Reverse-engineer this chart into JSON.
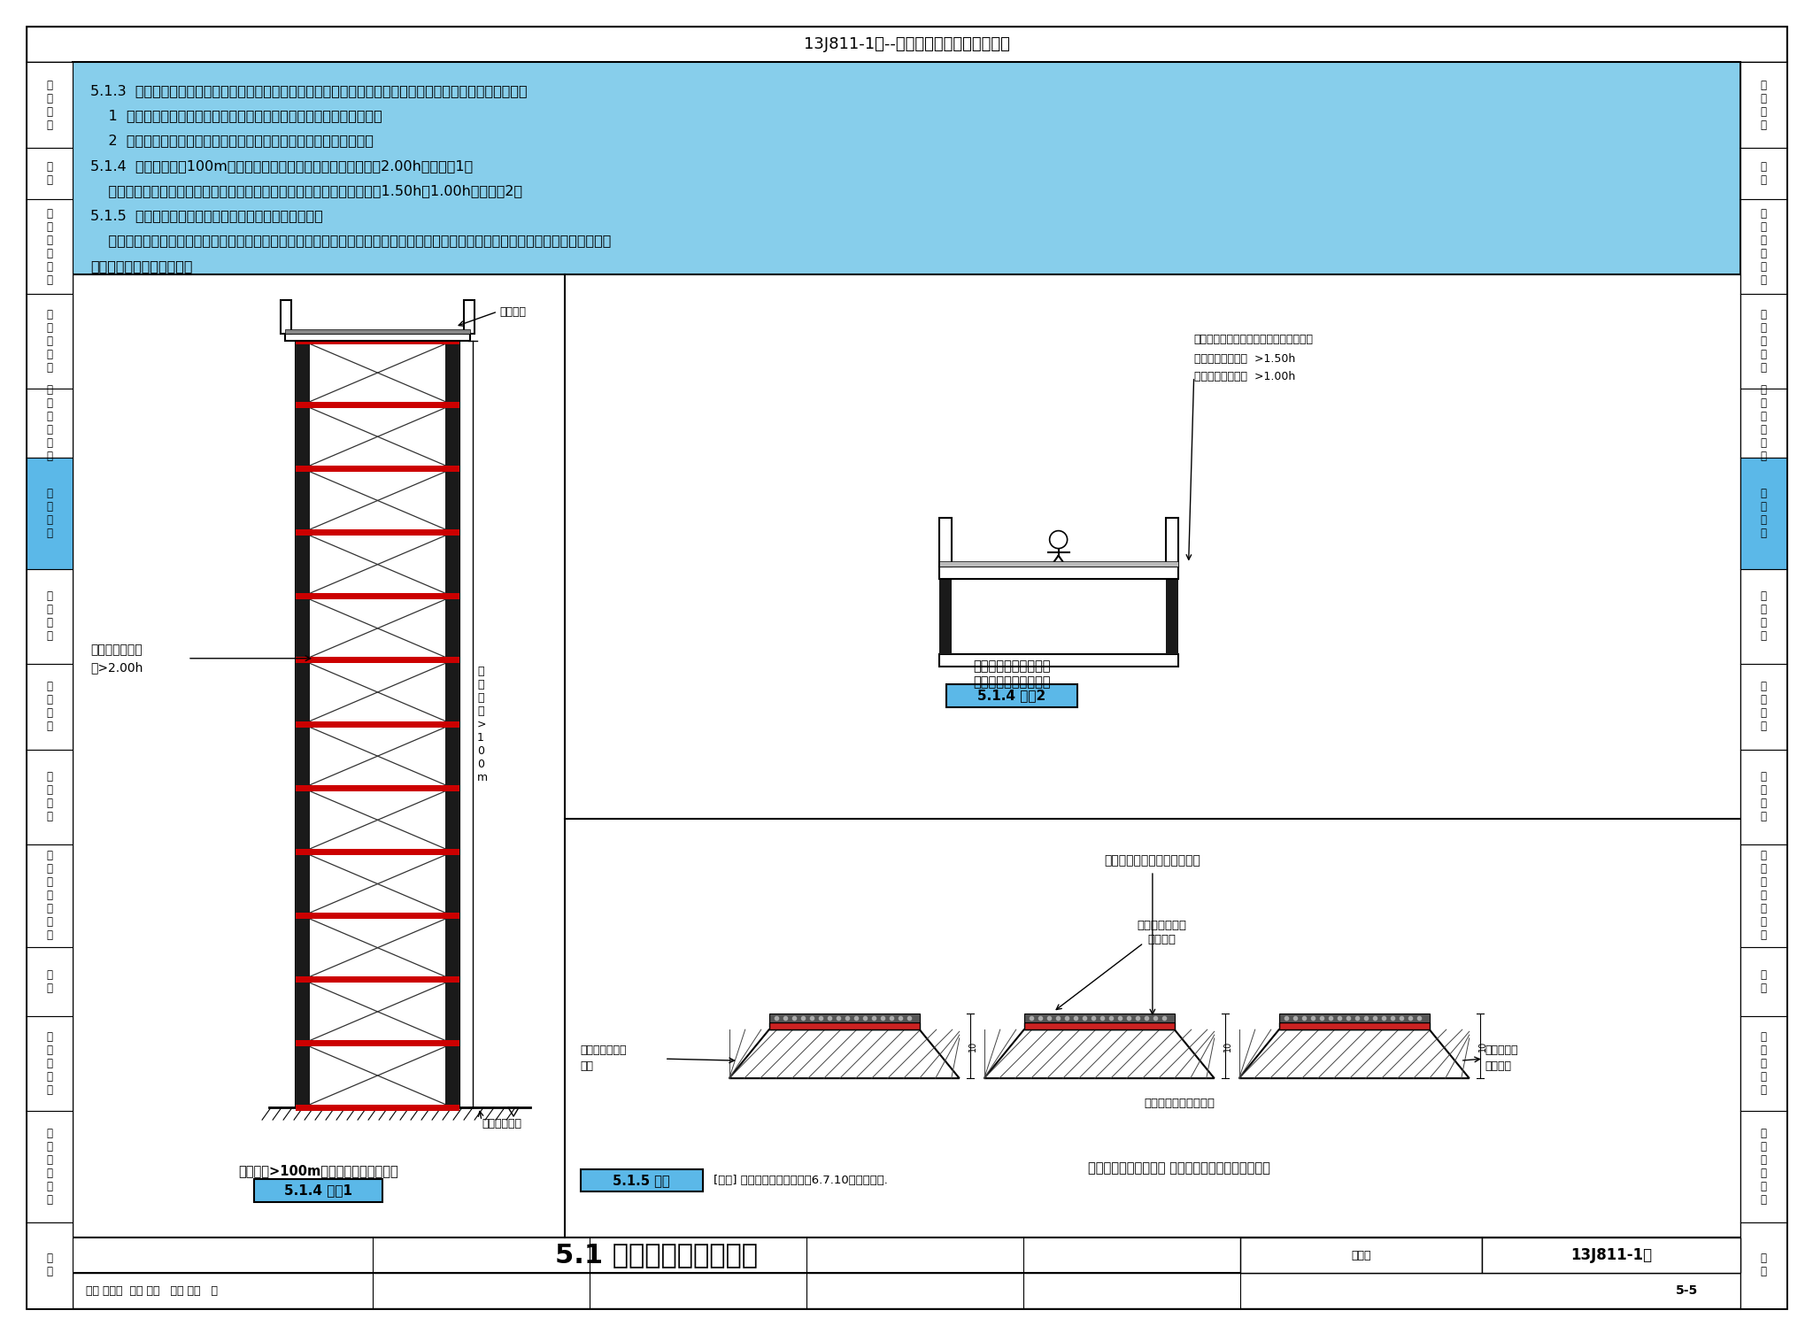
{
  "title": "5.1 建筑分类和耐火等级",
  "figure_number": "13J811-1改",
  "page": "5-5",
  "header_text_lines": [
    "5.1.3  民用建筑的耐火等级应根据其建筑高度、使用功能、重要性和火灾扑救难度等确定，并应符合下列规定：",
    "    1  地下或半地下建筑（室）和一类高层建筑的耐火等级不应低于一级；",
    "    2  单、多层重要公共建筑和二类高层建筑的耐火等级不应低于二级。",
    "5.1.4  建筑高度大于100m的民用建筑，其楼板的耐火极限不应低于2.00h。【图示1】",
    "    一、二级耐火等级建筑的上人平屋顶，其屋面板的耐火极限分别不应低于1.50h和1.00h。【图示2】",
    "5.1.5  一、二级耐火等级建筑的屋面板应采用不燃材料。",
    "    屋面防水层宜采用不燃、难燃材料，当采用可燃防水材料且铺设在可燃、难燃保温材料上时，防水材料或可燃、难燃保温材料应采用不",
    "燃材料作防护层。【图示】"
  ],
  "top_strip_text": "13J811-1改--《建筑设计防火规范》图示",
  "side_sections": [
    {
      "label": "编\n制\n说\n明",
      "highlight": false
    },
    {
      "label": "目\n录",
      "highlight": false
    },
    {
      "label": "总\n术\n符\n则\n语\n号",
      "highlight": false
    },
    {
      "label": "厂\n房\n和\n仓\n库",
      "highlight": false
    },
    {
      "label": "甲\n乙\n丙\n闲\n储\n体",
      "highlight": false
    },
    {
      "label": "民\n用\n建\n筑",
      "highlight": true
    },
    {
      "label": "建\n筑\n构\n造",
      "highlight": false
    },
    {
      "label": "灭\n火\n设\n施",
      "highlight": false
    },
    {
      "label": "消\n防\n设\n置",
      "highlight": false
    },
    {
      "label": "供\n暖\n和\n空\n气\n调\n节",
      "highlight": false
    },
    {
      "label": "电\n气",
      "highlight": false
    },
    {
      "label": "木\n结\n构\n建\n筑",
      "highlight": false
    },
    {
      "label": "城\n市\n交\n通\n隧\n道",
      "highlight": false
    },
    {
      "label": "附\n录",
      "highlight": false
    }
  ],
  "fig1_caption": "建筑高度>100m的民用建筑剖面示意图",
  "fig1_tag": "5.1.4 图示1",
  "fig2_caption1": "一、二级耐火等级建筑",
  "fig2_caption2": "上人平屋顶剖面示意图",
  "fig2_tag": "5.1.4 图示2",
  "fig3_caption": "一、二级耐火等级建筑 屋面防水层采用可燃防水材料",
  "fig3_tag": "5.1.5 图示",
  "fig3_note": "[注释] 防护层的厚度应符合第6.7.10条相关规定.",
  "fig3_top_label": "屋面防水层采用可燃防水材料",
  "fig3_mid_label1": "应采用不燃材料",
  "fig3_mid_label2": "作防护层",
  "fig3_bot_label": "屋面板应采用不燃材料",
  "fig3_left_label1": "可燃、难燃保温",
  "fig3_left_label2": "材料",
  "fig3_right_label1": "可燃、难燃",
  "fig3_right_label2": "保温材料",
  "fig2_annot1": "上人平屋顶，其屋面板的耐火极限应为：",
  "fig2_annot2": "一级耐火等级建筑  >1.50h",
  "fig2_annot3": "二级耐火等级建筑  >1.00h",
  "fig1_annot1": "楼板的耐火极限",
  "fig1_annot2": "应>2.00h",
  "fig1_roof_label": "屋面面层",
  "fig1_ground_label": "室外设计地面",
  "fig1_dim_label": "建筑高度>100m",
  "sig_line": "审核 蔡昭昀  校对 高杰   设计 李筱   页",
  "title_right1": "图集号",
  "title_right2": "13J811-1改"
}
